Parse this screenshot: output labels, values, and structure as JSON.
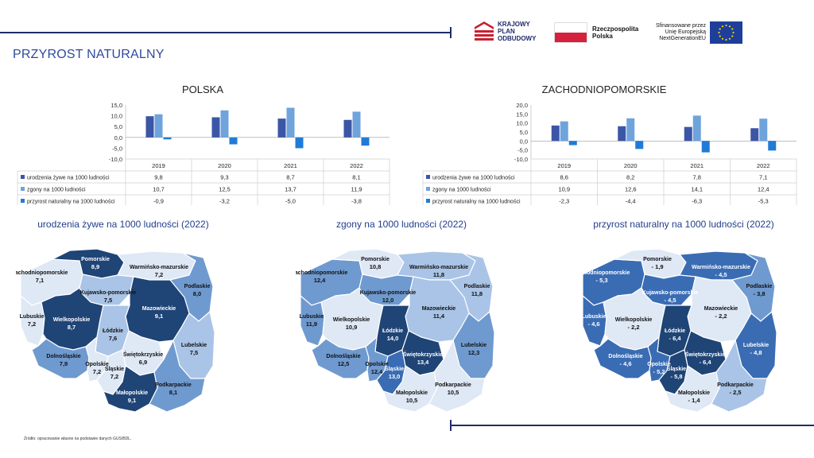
{
  "page_title": "PRZYROST NATURALNY",
  "logos": {
    "kpo": [
      "KRAJOWY",
      "PLAN",
      "ODBUDOWY"
    ],
    "rp": [
      "Rzeczpospolita",
      "Polska"
    ],
    "eu": [
      "Sfinansowane przez",
      "Unię Europejską",
      "NextGenerationEU"
    ]
  },
  "source_note": "Źródło: opracowanie własne na podstawie danych GUS/BDL.",
  "colors": {
    "births": "#3c56a6",
    "deaths": "#6fa3dc",
    "natural": "#1f7bd8",
    "title_blue": "#2e4a9e"
  },
  "chart_data": [
    {
      "type": "bar",
      "title": "POLSKA",
      "categories": [
        "2019",
        "2020",
        "2021",
        "2022"
      ],
      "yticks": [
        "15,0",
        "10,0",
        "5,0",
        "0,0",
        "-5,0",
        "-10,0"
      ],
      "ylim": [
        -10,
        15
      ],
      "series": [
        {
          "name": "urodzenia żywe na 1000 ludności",
          "values": [
            9.8,
            9.3,
            8.7,
            8.1
          ],
          "labels": [
            "9,8",
            "9,3",
            "8,7",
            "8,1"
          ]
        },
        {
          "name": "zgony na 1000 ludności",
          "values": [
            10.7,
            12.5,
            13.7,
            11.9
          ],
          "labels": [
            "10,7",
            "12,5",
            "13,7",
            "11,9"
          ]
        },
        {
          "name": "przyrost naturalny na 1000 ludności",
          "values": [
            -0.9,
            -3.2,
            -5.0,
            -3.8
          ],
          "labels": [
            "-0,9",
            "-3,2",
            "-5,0",
            "-3,8"
          ]
        }
      ],
      "legend": "data-table"
    },
    {
      "type": "bar",
      "title": "ZACHODNIOPOMORSKIE",
      "categories": [
        "2019",
        "2020",
        "2021",
        "2022"
      ],
      "yticks": [
        "20,0",
        "15,0",
        "10,0",
        "5,0",
        "0,0",
        "-5,0",
        "-10,0"
      ],
      "ylim": [
        -10,
        20
      ],
      "series": [
        {
          "name": "urodzenia żywe na 1000 ludności",
          "values": [
            8.6,
            8.2,
            7.8,
            7.1
          ],
          "labels": [
            "8,6",
            "8,2",
            "7,8",
            "7,1"
          ]
        },
        {
          "name": "zgony na 1000 ludności",
          "values": [
            10.9,
            12.6,
            14.1,
            12.4
          ],
          "labels": [
            "10,9",
            "12,6",
            "14,1",
            "12,4"
          ]
        },
        {
          "name": "przyrost naturalny na 1000 ludności",
          "values": [
            -2.3,
            -4.4,
            -6.3,
            -5.3
          ],
          "labels": [
            "-2,3",
            "-4,4",
            "-6,3",
            "-5,3"
          ]
        }
      ],
      "legend": "data-table"
    },
    {
      "type": "heatmap",
      "title": "urodzenia żywe na 1000 ludności (2022)",
      "regions": [
        {
          "name": "Zachodniopomorskie",
          "label": "7,1",
          "value": 7.1
        },
        {
          "name": "Pomorskie",
          "label": "8,9",
          "value": 8.9
        },
        {
          "name": "Warmińsko-mazurskie",
          "label": "7,2",
          "value": 7.2
        },
        {
          "name": "Podlaskie",
          "label": "8,0",
          "value": 8.0
        },
        {
          "name": "Kujawsko-pomorskie",
          "label": "7,5",
          "value": 7.5
        },
        {
          "name": "Lubuskie",
          "label": "7,2",
          "value": 7.2
        },
        {
          "name": "Wielkopolskie",
          "label": "8,7",
          "value": 8.7
        },
        {
          "name": "Mazowieckie",
          "label": "9,1",
          "value": 9.1
        },
        {
          "name": "Łódzkie",
          "label": "7,6",
          "value": 7.6
        },
        {
          "name": "Lubelskie",
          "label": "7,5",
          "value": 7.5
        },
        {
          "name": "Dolnośląskie",
          "label": "7,9",
          "value": 7.9
        },
        {
          "name": "Opolskie",
          "label": "7,2",
          "value": 7.2
        },
        {
          "name": "Śląskie",
          "label": "7,2",
          "value": 7.2
        },
        {
          "name": "Świętokrzyskie",
          "label": "6,9",
          "value": 6.9
        },
        {
          "name": "Małopolskie",
          "label": "9,1",
          "value": 9.1
        },
        {
          "name": "Podkarpackie",
          "label": "8,1",
          "value": 8.1
        }
      ]
    },
    {
      "type": "heatmap",
      "title": "zgony na 1000 ludności (2022)",
      "regions": [
        {
          "name": "Zachodniopomorskie",
          "label": "12,4",
          "value": 12.4
        },
        {
          "name": "Pomorskie",
          "label": "10,8",
          "value": 10.8
        },
        {
          "name": "Warmińsko-mazurskie",
          "label": "11,8",
          "value": 11.8
        },
        {
          "name": "Podlaskie",
          "label": "11,8",
          "value": 11.8
        },
        {
          "name": "Kujawsko-pomorskie",
          "label": "12,0",
          "value": 12.0
        },
        {
          "name": "Lubuskie",
          "label": "11,9",
          "value": 11.9
        },
        {
          "name": "Wielkopolskie",
          "label": "10,9",
          "value": 10.9
        },
        {
          "name": "Mazowieckie",
          "label": "11,4",
          "value": 11.4
        },
        {
          "name": "Łódzkie",
          "label": "14,0",
          "value": 14.0
        },
        {
          "name": "Lubelskie",
          "label": "12,3",
          "value": 12.3
        },
        {
          "name": "Dolnośląskie",
          "label": "12,5",
          "value": 12.5
        },
        {
          "name": "Opolskie",
          "label": "12,4",
          "value": 12.4
        },
        {
          "name": "Śląskie",
          "label": "13,0",
          "value": 13.0
        },
        {
          "name": "Świętokrzyskie",
          "label": "13,4",
          "value": 13.4
        },
        {
          "name": "Małopolskie",
          "label": "10,5",
          "value": 10.5
        },
        {
          "name": "Podkarpackie",
          "label": "10,5",
          "value": 10.5
        }
      ]
    },
    {
      "type": "heatmap",
      "title": "przyrost naturalny na 1000 ludności (2022)",
      "regions": [
        {
          "name": "Zachodniopomorskie",
          "label": "- 5,3",
          "value": -5.3
        },
        {
          "name": "Pomorskie",
          "label": "- 1,9",
          "value": -1.9
        },
        {
          "name": "Warmińsko-mazurskie",
          "label": "- 4,5",
          "value": -4.5
        },
        {
          "name": "Podlaskie",
          "label": "- 3,8",
          "value": -3.8
        },
        {
          "name": "Kujawsko-pomorskie",
          "label": "- 4,5",
          "value": -4.5
        },
        {
          "name": "Lubuskie",
          "label": "- 4,6",
          "value": -4.6
        },
        {
          "name": "Wielkopolskie",
          "label": "- 2,2",
          "value": -2.2
        },
        {
          "name": "Mazowieckie",
          "label": "- 2,2",
          "value": -2.2
        },
        {
          "name": "Łódzkie",
          "label": "- 6,4",
          "value": -6.4
        },
        {
          "name": "Lubelskie",
          "label": "- 4,8",
          "value": -4.8
        },
        {
          "name": "Dolnośląskie",
          "label": "- 4,6",
          "value": -4.6
        },
        {
          "name": "Opolskie",
          "label": "- 5,2",
          "value": -5.2
        },
        {
          "name": "Śląskie",
          "label": "- 5,8",
          "value": -5.8
        },
        {
          "name": "Świętokrzyskie",
          "label": "- 6,4",
          "value": -6.4
        },
        {
          "name": "Małopolskie",
          "label": "- 1,4",
          "value": -1.4
        },
        {
          "name": "Podkarpackie",
          "label": "- 2,5",
          "value": -2.5
        }
      ]
    }
  ]
}
